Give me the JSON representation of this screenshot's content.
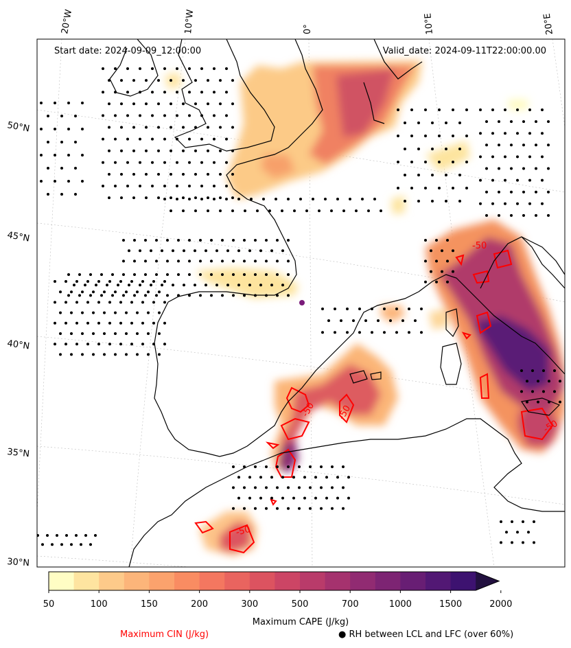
{
  "header": {
    "start_date": "Start date: 2024-09-09_12:00:00",
    "valid_date": "Valid_date: 2024-09-11T22:00:00.00"
  },
  "axes": {
    "lon_labels": [
      "20°W",
      "10°W",
      "0°",
      "10°E",
      "20°E"
    ],
    "lat_labels": [
      "50°N",
      "45°N",
      "40°N",
      "35°N",
      "30°N"
    ]
  },
  "colorbar": {
    "ticks": [
      "50",
      "100",
      "150",
      "200",
      "300",
      "500",
      "700",
      "1000",
      "1500",
      "2000"
    ],
    "colors": [
      "#fffdc4",
      "#fee4a0",
      "#fdca8a",
      "#fcb57a",
      "#fba26d",
      "#f98c62",
      "#f47760",
      "#e9645f",
      "#dc5360",
      "#cc4565",
      "#b93b6a",
      "#a5326e",
      "#912b72",
      "#7d2473",
      "#681e74",
      "#521874",
      "#3d1270",
      "#22103f"
    ],
    "label": "Maximum CAPE (J/kg)"
  },
  "legend": {
    "cin_label": "Maximum CIN (J/kg)",
    "cin_color": "#ff0000",
    "rh_label": "RH between LCL and LFC (over 60%)",
    "rh_marker": "●"
  },
  "contour_labels": {
    "a": "-50",
    "b": "-50",
    "c": "-50",
    "d": "-50",
    "e": "-50"
  }
}
